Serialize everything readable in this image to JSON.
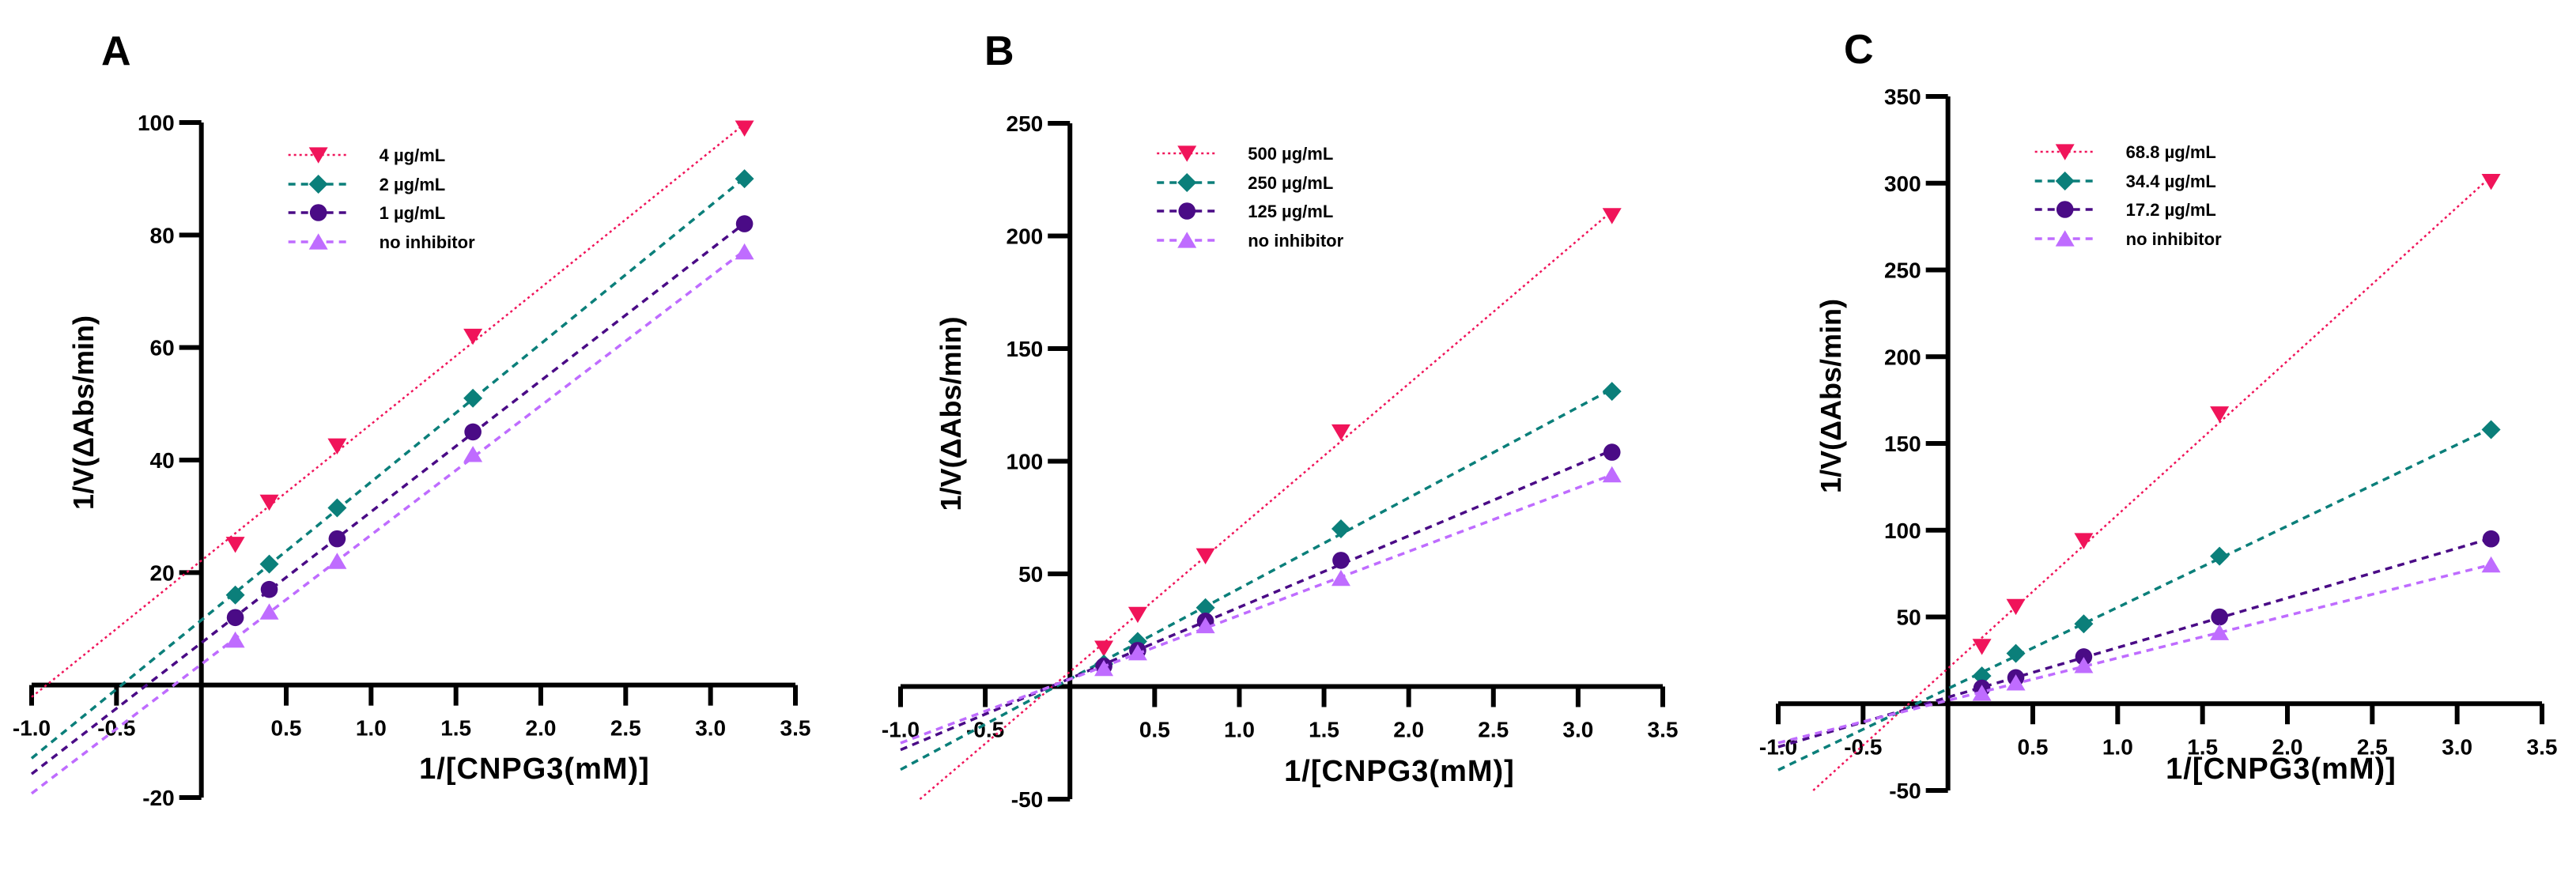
{
  "chart_data": [
    {
      "type": "line",
      "panel_label": "A",
      "xlabel": "1/[CNPG3(mM)]",
      "ylabel": "1/V(ΔAbs/min)",
      "xlim": [
        -1.0,
        3.5
      ],
      "ylim": [
        -20,
        100
      ],
      "xticks": [
        "-1.0",
        "-0.5",
        "0.5",
        "1.0",
        "1.5",
        "2.0",
        "2.5",
        "3.0",
        "3.5"
      ],
      "xtick_values": [
        -1.0,
        -0.5,
        0.5,
        1.0,
        1.5,
        2.0,
        2.5,
        3.0,
        3.5
      ],
      "yticks": [
        "-20",
        "20",
        "40",
        "60",
        "80",
        "100"
      ],
      "ytick_values": [
        -20,
        20,
        40,
        60,
        80,
        100
      ],
      "legend_position": "top-left",
      "x": [
        0.2,
        0.4,
        0.8,
        1.6,
        3.2
      ],
      "series": [
        {
          "name": "4 µg/mL",
          "marker": "triangle-down",
          "color": "#f0145a",
          "values": [
            25,
            32.5,
            42.5,
            62,
            99
          ]
        },
        {
          "name": "2 µg/mL",
          "marker": "diamond",
          "color": "#0b7f7a",
          "values": [
            16,
            21.5,
            31.5,
            51,
            90
          ]
        },
        {
          "name": "1 µg/mL",
          "marker": "circle",
          "color": "#4a0b86",
          "values": [
            12,
            17,
            26,
            45,
            82
          ]
        },
        {
          "name": "no inhibitor",
          "marker": "triangle-up",
          "color": "#bf6cff",
          "values": [
            8,
            13,
            22,
            41,
            77
          ]
        }
      ]
    },
    {
      "type": "line",
      "panel_label": "B",
      "xlabel": "1/[CNPG3(mM)]",
      "ylabel": "1/V(ΔAbs/min)",
      "xlim": [
        -1.0,
        3.5
      ],
      "ylim": [
        -50,
        250
      ],
      "xticks": [
        "-1.0",
        "-0.5",
        "0.5",
        "1.0",
        "1.5",
        "2.0",
        "2.5",
        "3.0",
        "3.5"
      ],
      "xtick_values": [
        -1.0,
        -0.5,
        0.5,
        1.0,
        1.5,
        2.0,
        2.5,
        3.0,
        3.5
      ],
      "yticks": [
        "-50",
        "50",
        "100",
        "150",
        "200",
        "250"
      ],
      "ytick_values": [
        -50,
        50,
        100,
        150,
        200,
        250
      ],
      "legend_position": "top-left",
      "x": [
        0.2,
        0.4,
        0.8,
        1.6,
        3.2
      ],
      "series": [
        {
          "name": "500 µg/mL",
          "marker": "triangle-down",
          "color": "#f0145a",
          "values": [
            17,
            32,
            58,
            113,
            209
          ]
        },
        {
          "name": "250 µg/mL",
          "marker": "diamond",
          "color": "#0b7f7a",
          "values": [
            10,
            20,
            35,
            70,
            131
          ]
        },
        {
          "name": "125 µg/mL",
          "marker": "circle",
          "color": "#4a0b86",
          "values": [
            9,
            16,
            29,
            56,
            104
          ]
        },
        {
          "name": "no inhibitor",
          "marker": "triangle-up",
          "color": "#bf6cff",
          "values": [
            8,
            15,
            27,
            48,
            94
          ]
        }
      ]
    },
    {
      "type": "line",
      "panel_label": "C",
      "xlabel": "1/[CNPG3(mM)]",
      "ylabel": "1/V(ΔAbs/min)",
      "xlim": [
        -1.0,
        3.5
      ],
      "ylim": [
        -50,
        350
      ],
      "xticks": [
        "-1.0",
        "-0.5",
        "0.5",
        "1.0",
        "1.5",
        "2.0",
        "2.5",
        "3.0",
        "3.5"
      ],
      "xtick_values": [
        -1.0,
        -0.5,
        0.5,
        1.0,
        1.5,
        2.0,
        2.5,
        3.0,
        3.5
      ],
      "yticks": [
        "-50",
        "50",
        "100",
        "150",
        "200",
        "250",
        "300",
        "350"
      ],
      "ytick_values": [
        -50,
        50,
        100,
        150,
        200,
        250,
        300,
        350
      ],
      "legend_position": "top-left",
      "x": [
        0.2,
        0.4,
        0.8,
        1.6,
        3.2
      ],
      "series": [
        {
          "name": "68.8 µg/mL",
          "marker": "triangle-down",
          "color": "#f0145a",
          "values": [
            33,
            56,
            94,
            167,
            301
          ]
        },
        {
          "name": "34.4 µg/mL",
          "marker": "diamond",
          "color": "#0b7f7a",
          "values": [
            16,
            29,
            46,
            85,
            158
          ]
        },
        {
          "name": "17.2 µg/mL",
          "marker": "circle",
          "color": "#4a0b86",
          "values": [
            9,
            15,
            27,
            50,
            95
          ]
        },
        {
          "name": "no inhibitor",
          "marker": "triangle-up",
          "color": "#bf6cff",
          "values": [
            6,
            12,
            22,
            41,
            80
          ]
        }
      ]
    }
  ]
}
